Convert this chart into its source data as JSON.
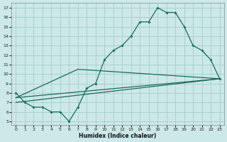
{
  "xlabel": "Humidex (Indice chaleur)",
  "bg_color": "#cce8e8",
  "grid_color": "#a8cccc",
  "line_color": "#1a6b5a",
  "xlim_min": -0.5,
  "xlim_max": 23.5,
  "ylim_min": 4.6,
  "ylim_max": 17.5,
  "xticks": [
    0,
    1,
    2,
    3,
    4,
    5,
    6,
    7,
    8,
    9,
    10,
    11,
    12,
    13,
    14,
    15,
    16,
    17,
    18,
    19,
    20,
    21,
    22,
    23
  ],
  "yticks": [
    5,
    6,
    7,
    8,
    9,
    10,
    11,
    12,
    13,
    14,
    15,
    16,
    17
  ],
  "curve_x": [
    0,
    1,
    2,
    3,
    4,
    5,
    6,
    7,
    8,
    9,
    10,
    11,
    12,
    13,
    14,
    15,
    16,
    17,
    18,
    19,
    20,
    21,
    22,
    23
  ],
  "curve_y": [
    8,
    7,
    6.5,
    6.5,
    6,
    6,
    5,
    6.5,
    8.5,
    9,
    11.5,
    12.5,
    13,
    14,
    15.5,
    15.5,
    17,
    16.5,
    16.5,
    15,
    13,
    12.5,
    11.5,
    9.5
  ],
  "line1_x": [
    0,
    23
  ],
  "line1_y": [
    7.5,
    9.5
  ],
  "line2_x": [
    0,
    7,
    23
  ],
  "line2_y": [
    7.5,
    10.5,
    9.5
  ],
  "line3_x": [
    0,
    23
  ],
  "line3_y": [
    7,
    9.5
  ]
}
